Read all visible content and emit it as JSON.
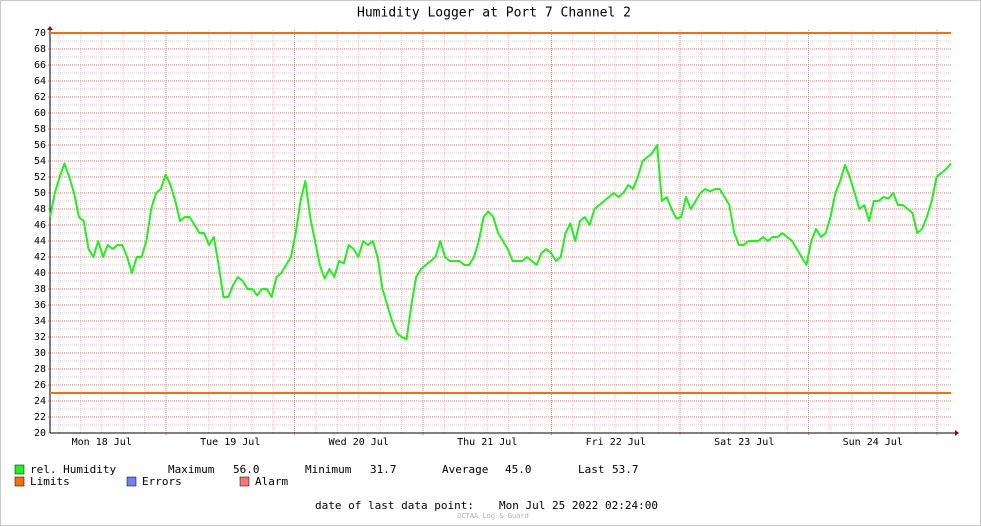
{
  "chart_data": {
    "type": "line",
    "title": "Humidity Logger at Port 7 Channel 2",
    "x_labels": [
      "Mon 18 Jul",
      "Tue 19 Jul",
      "Wed 20 Jul",
      "Thu 21 Jul",
      "Fri 22 Jul",
      "Sat 23 Jul",
      "Sun 24 Jul"
    ],
    "series": [
      {
        "name": "rel. Humidity",
        "color": "#22ee22",
        "values": [
          47,
          50,
          52,
          53.7,
          52,
          50,
          47,
          46.5,
          43,
          42,
          44,
          42,
          43.5,
          43,
          43.5,
          43.5,
          42,
          40,
          42,
          42,
          44,
          48,
          50,
          50.5,
          52.3,
          51,
          49,
          46.5,
          47,
          47,
          46,
          45,
          45,
          43.5,
          44.5,
          41,
          37,
          37,
          38.5,
          39.5,
          39,
          38,
          38,
          37.2,
          38,
          38,
          37,
          39.5,
          40,
          41,
          42,
          45,
          49,
          51.5,
          47,
          44,
          41,
          39.3,
          40.5,
          39.5,
          41.5,
          41.2,
          43.5,
          43,
          42,
          44,
          43.5,
          44,
          42,
          38,
          36,
          34,
          32.5,
          32,
          31.7,
          36,
          39.5,
          40.5,
          41,
          41.5,
          42,
          44,
          42,
          41.5,
          41.5,
          41.5,
          41,
          41,
          42,
          44,
          47,
          47.7,
          47,
          45,
          44,
          43,
          41.5,
          41.5,
          41.5,
          42,
          41.5,
          41,
          42.5,
          43,
          42.5,
          41.5,
          42,
          45,
          46.2,
          44,
          46.5,
          47,
          46,
          48,
          48.5,
          49,
          49.5,
          50,
          49.5,
          50,
          51,
          50.5,
          52,
          54,
          54.5,
          55,
          56,
          49,
          49.5,
          48,
          46.8,
          47,
          49.5,
          48,
          49,
          50,
          50.5,
          50.2,
          50.5,
          50.5,
          49.5,
          48.5,
          45,
          43.5,
          43.5,
          44,
          44,
          44,
          44.5,
          44,
          44.5,
          44.5,
          45,
          44.5,
          44,
          43,
          42,
          41,
          44,
          45.5,
          44.5,
          45,
          47,
          50,
          51.5,
          53.5,
          52,
          50,
          48,
          48.5,
          46.5,
          49,
          49,
          49.5,
          49.3,
          50,
          48.5,
          48.5,
          48,
          47.5,
          45,
          45.5,
          47,
          49,
          52,
          52.5,
          53,
          53.7
        ]
      }
    ],
    "limits": {
      "name": "Limits",
      "color": "#f07010",
      "values": [
        70,
        25
      ]
    },
    "legend_extra": [
      {
        "name": "Errors",
        "color": "#7080f0"
      },
      {
        "name": "Alarm",
        "color": "#f07878"
      }
    ],
    "stats": [
      {
        "label": "Maximum",
        "value": "56.0"
      },
      {
        "label": "Minimum",
        "value": "31.7"
      },
      {
        "label": "Average",
        "value": "45.0"
      },
      {
        "label": "Last",
        "value": "53.7"
      }
    ],
    "footer": {
      "label": "date of last data point:",
      "value": "Mon Jul 25 2022 02:24:00"
    },
    "watermark": "OCTAA Log & Guard",
    "ylim": [
      20,
      70
    ],
    "yticks": [
      20,
      22,
      24,
      26,
      28,
      30,
      32,
      34,
      36,
      38,
      40,
      42,
      44,
      46,
      48,
      50,
      52,
      54,
      56,
      58,
      60,
      62,
      64,
      66,
      68,
      70
    ],
    "grid": true
  }
}
